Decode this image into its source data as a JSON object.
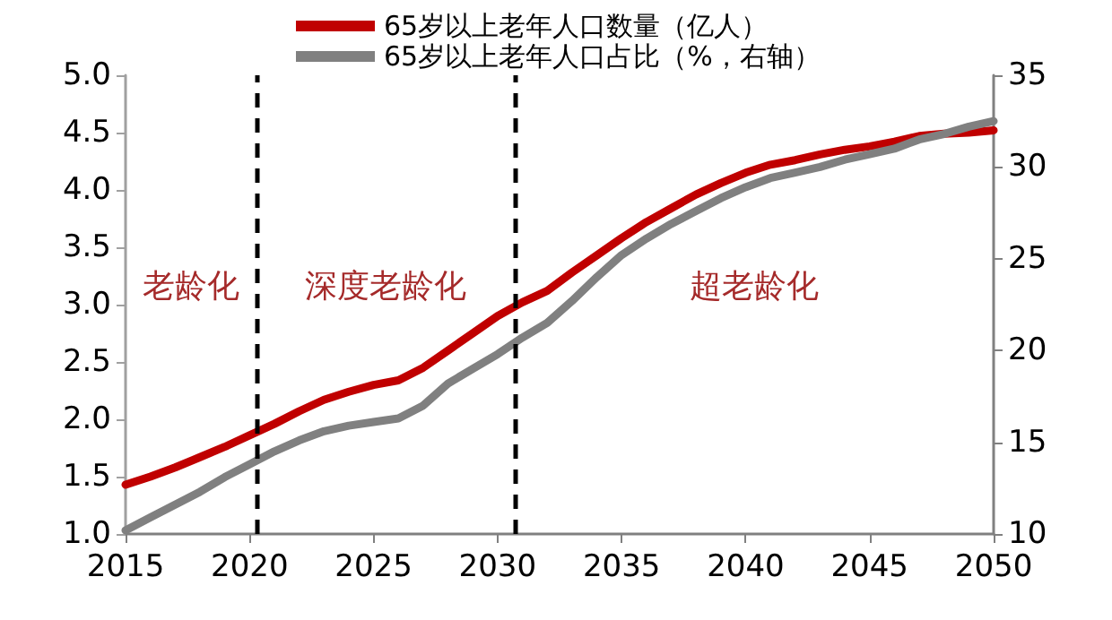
{
  "chart_data": {
    "type": "line",
    "x": [
      2015,
      2016,
      2017,
      2018,
      2019,
      2020,
      2021,
      2022,
      2023,
      2024,
      2025,
      2026,
      2027,
      2028,
      2029,
      2030,
      2031,
      2032,
      2033,
      2034,
      2035,
      2036,
      2037,
      2038,
      2039,
      2040,
      2041,
      2042,
      2043,
      2044,
      2045,
      2046,
      2047,
      2048,
      2049,
      2050
    ],
    "series": [
      {
        "name": "65岁以上老年人口数量（亿人）",
        "color": "#c00000",
        "values": [
          1.43,
          1.5,
          1.58,
          1.67,
          1.76,
          1.86,
          1.96,
          2.07,
          2.17,
          2.24,
          2.3,
          2.34,
          2.45,
          2.6,
          2.75,
          2.9,
          3.02,
          3.12,
          3.28,
          3.43,
          3.58,
          3.72,
          3.84,
          3.96,
          4.06,
          4.15,
          4.22,
          4.26,
          4.31,
          4.35,
          4.38,
          4.42,
          4.47,
          4.49,
          4.5,
          4.52
        ]
      },
      {
        "name": "65岁以上老年人口占比（%，右轴）",
        "color": "#808080",
        "axis": "y2",
        "values": [
          10.2,
          10.9,
          11.6,
          12.3,
          13.1,
          13.8,
          14.5,
          15.1,
          15.6,
          15.9,
          16.1,
          16.3,
          17.0,
          18.2,
          19.0,
          19.8,
          20.7,
          21.5,
          22.7,
          24.0,
          25.2,
          26.1,
          26.9,
          27.6,
          28.3,
          28.9,
          29.4,
          29.7,
          30.0,
          30.4,
          30.7,
          31.0,
          31.5,
          31.8,
          32.2,
          32.5
        ]
      }
    ],
    "xlim": [
      2015,
      2050
    ],
    "xticks": [
      2015,
      2020,
      2025,
      2030,
      2035,
      2040,
      2045,
      2050
    ],
    "ylim": [
      1.0,
      5.0
    ],
    "yticks": [
      {
        "value": 1.0,
        "label": "1.0"
      },
      {
        "value": 1.5,
        "label": "1.5"
      },
      {
        "value": 2.0,
        "label": "2.0"
      },
      {
        "value": 2.5,
        "label": "2.5"
      },
      {
        "value": 3.0,
        "label": "3.0"
      },
      {
        "value": 3.5,
        "label": "3.5"
      },
      {
        "value": 4.0,
        "label": "4.0"
      },
      {
        "value": 4.5,
        "label": "4.5"
      },
      {
        "value": 5.0,
        "label": "5.0"
      }
    ],
    "y2lim": [
      10,
      35
    ],
    "y2ticks": [
      10,
      15,
      20,
      25,
      30,
      35
    ],
    "ref_lines": [
      {
        "axis": "x",
        "value": 2020.3,
        "color": "#000000",
        "line_style": "dashed"
      },
      {
        "axis": "x",
        "value": 2030.7,
        "color": "#000000",
        "line_style": "dashed"
      }
    ],
    "annotations": [
      "老龄化",
      "深度老龄化",
      "超老龄化"
    ],
    "legend": "top",
    "grid": false,
    "marker": "none",
    "line_style": "solid"
  }
}
